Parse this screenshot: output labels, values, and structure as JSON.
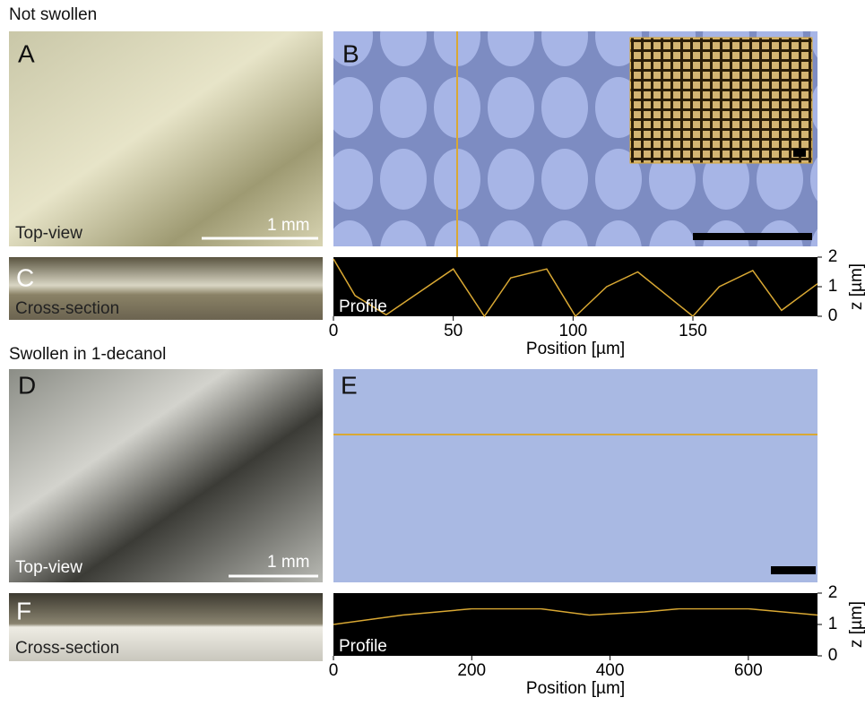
{
  "sections": [
    {
      "title": "Not swollen"
    },
    {
      "title": "Swollen in 1-decanol"
    }
  ],
  "panels": [
    {
      "letter": "A",
      "caption": "Top-view",
      "scale_label": "1 mm"
    },
    {
      "letter": "B"
    },
    {
      "letter": "C",
      "caption": "Cross-section"
    },
    {
      "letter": "D",
      "caption": "Top-view",
      "scale_label": "1 mm"
    },
    {
      "letter": "E"
    },
    {
      "letter": "F",
      "caption": "Cross-section"
    }
  ],
  "chart_data": [
    {
      "type": "line",
      "label": "Profile",
      "x_label": "Position [µm]",
      "y_label": "z [µm]",
      "color": "#d9a833",
      "x": [
        0,
        9,
        22,
        50,
        63,
        74,
        89,
        101,
        114,
        127,
        150,
        161,
        175,
        187,
        202
      ],
      "values": [
        1.94,
        0.7,
        0.05,
        1.6,
        0.0,
        1.3,
        1.6,
        0.0,
        1.0,
        1.5,
        0.0,
        1.0,
        1.55,
        0.2,
        1.1
      ],
      "xlim": [
        0,
        202
      ],
      "ylim": [
        0,
        2
      ],
      "xticks": [
        0,
        50,
        100,
        150
      ],
      "yticks": [
        0,
        1,
        2
      ]
    },
    {
      "type": "line",
      "label": "Profile",
      "x_label": "Position [µm]",
      "y_label": "z [µm]",
      "color": "#d9a833",
      "x": [
        0,
        100,
        200,
        300,
        370,
        450,
        500,
        600,
        650,
        700
      ],
      "values": [
        1.0,
        1.3,
        1.5,
        1.5,
        1.3,
        1.4,
        1.5,
        1.5,
        1.4,
        1.3
      ],
      "xlim": [
        0,
        700
      ],
      "ylim": [
        0,
        2
      ],
      "xticks": [
        0,
        200,
        400,
        600
      ],
      "yticks": [
        0,
        1,
        2
      ]
    }
  ]
}
